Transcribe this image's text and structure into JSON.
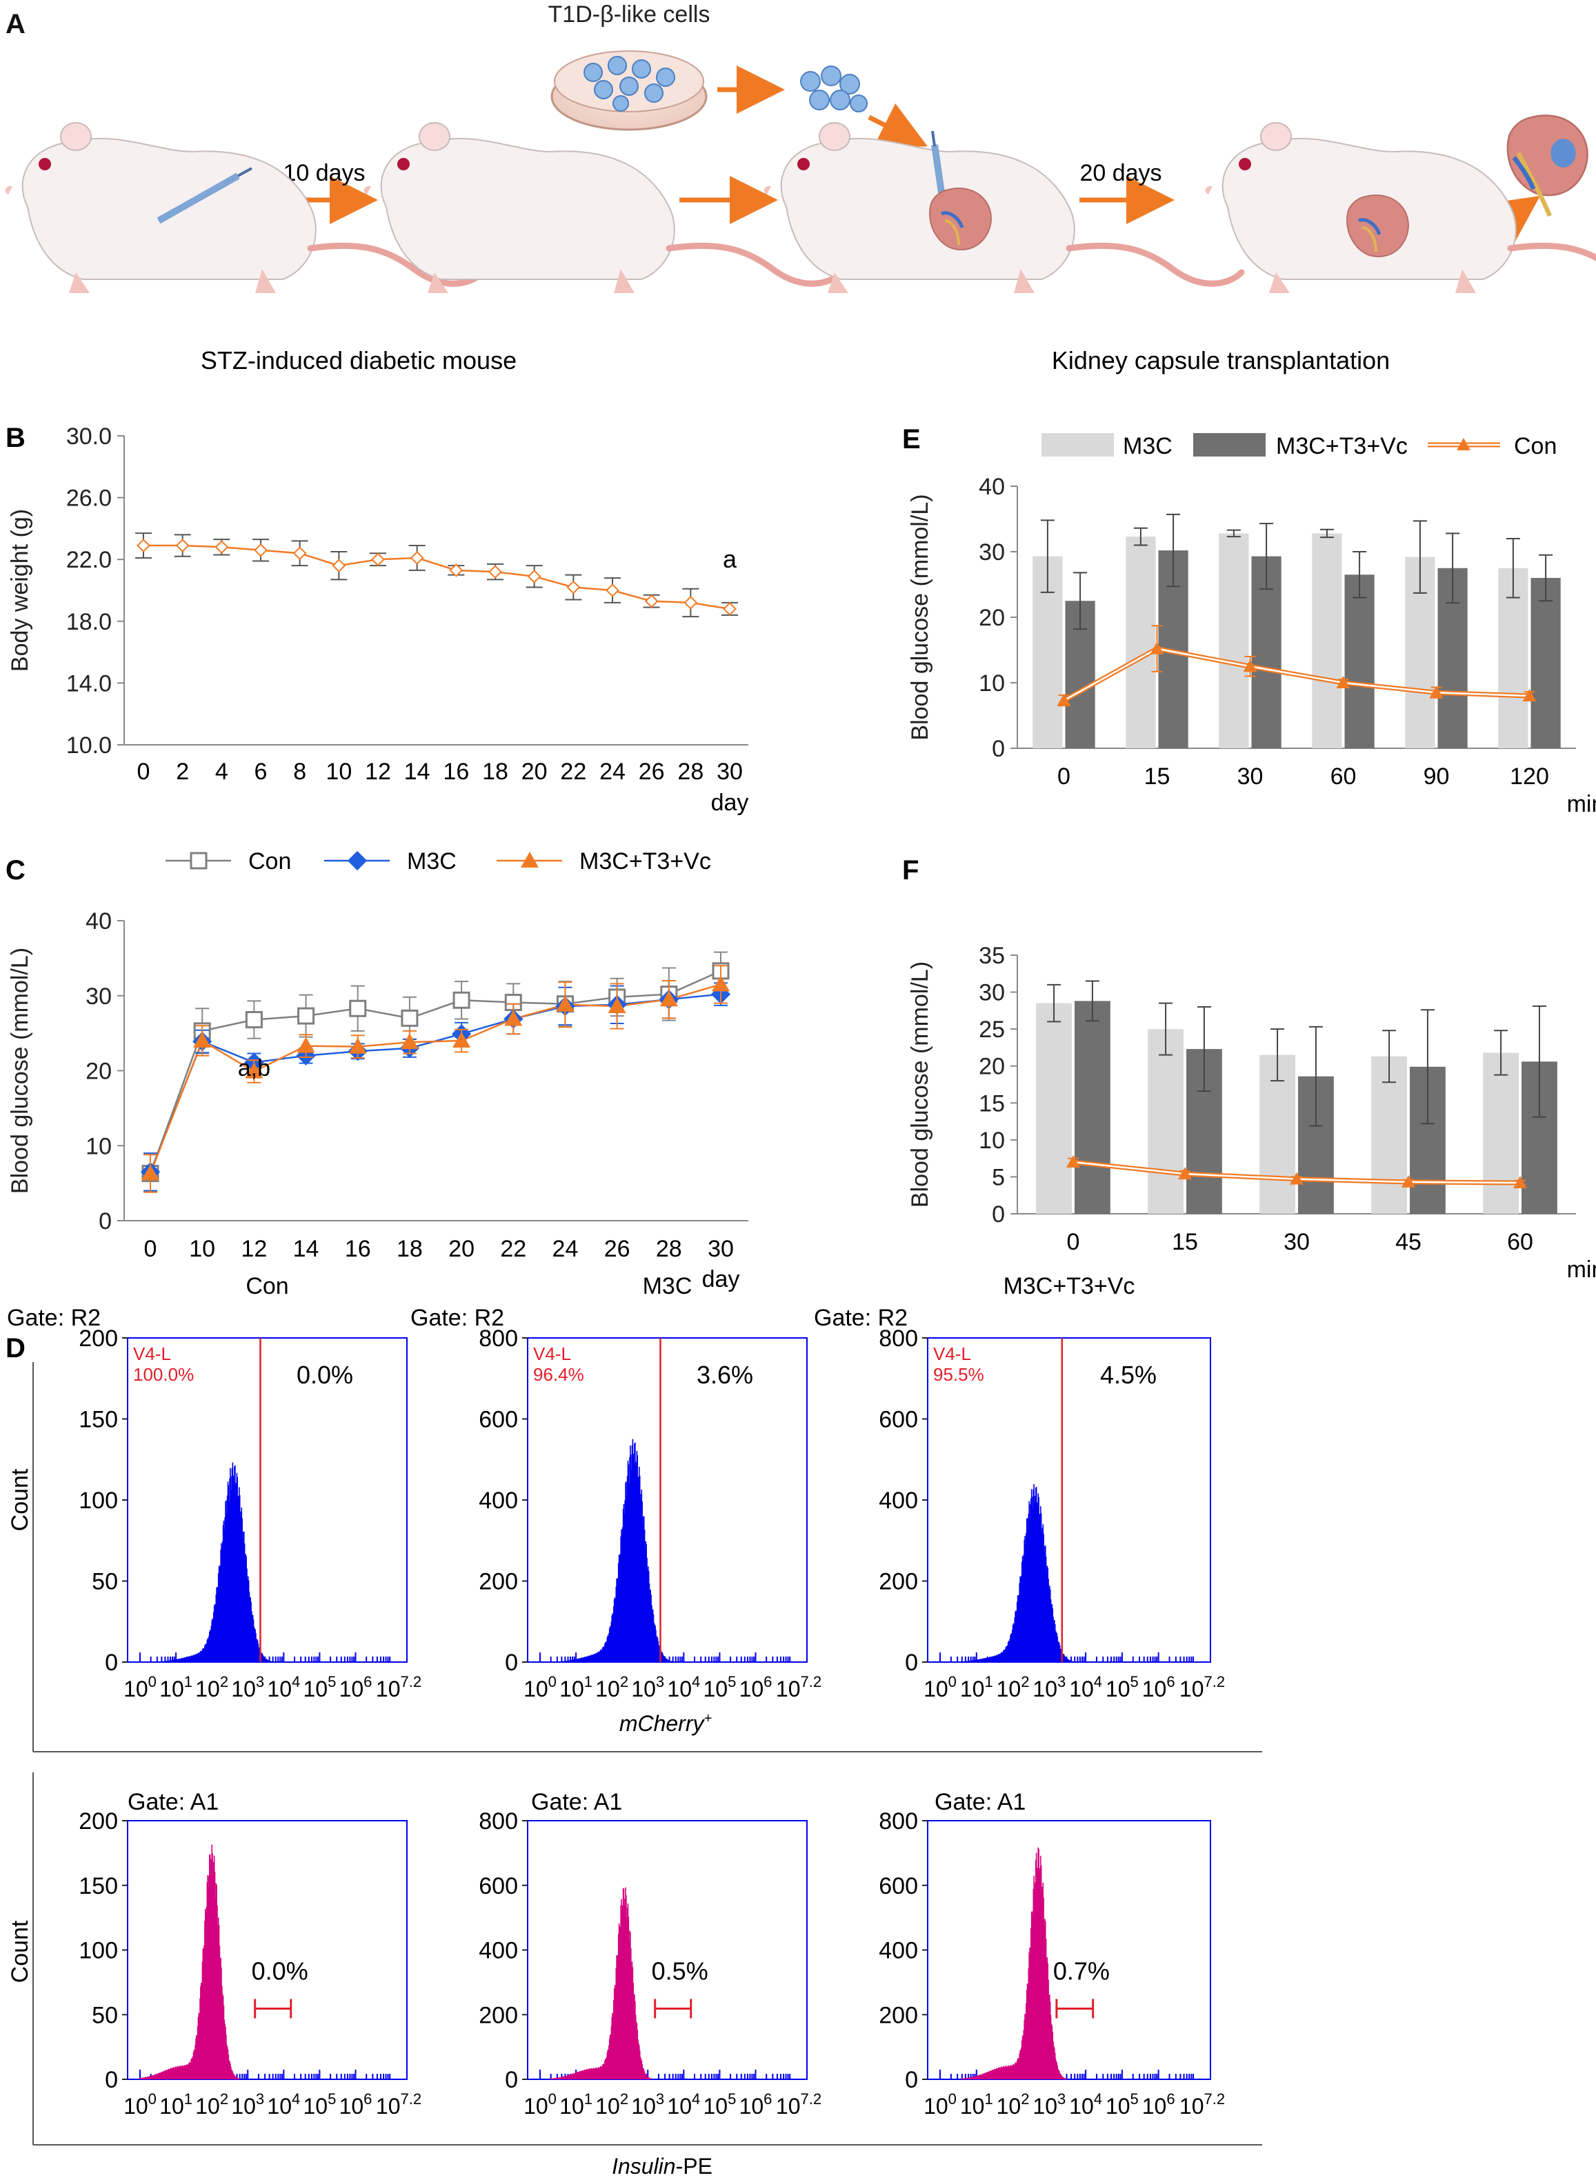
{
  "panels": {
    "A": "A",
    "B": "B",
    "C": "C",
    "D": "D",
    "E": "E",
    "F": "F"
  },
  "schematic": {
    "cells_label": "T1D-β-like cells",
    "step1": "10 days",
    "step2": "20 days",
    "caption_left": "STZ-induced diabetic mouse",
    "caption_right": "Kidney capsule transplantation"
  },
  "colors": {
    "orange": "#F07A24",
    "blue": "#1F5FE0",
    "gray": "#7F7F7F",
    "light_bar": "#D9D9D9",
    "dark_bar": "#707070",
    "flow_blue": "#0000F0",
    "flow_magenta": "#D4007F",
    "gate_red": "#E0202A"
  },
  "chart_data": [
    {
      "id": "B",
      "type": "line",
      "ylabel": "Body weight (g)",
      "xlabel": "day",
      "x": [
        0,
        2,
        4,
        6,
        8,
        10,
        12,
        14,
        16,
        18,
        20,
        22,
        24,
        26,
        28,
        30
      ],
      "ylim": [
        10.0,
        30.0
      ],
      "yticks": [
        "10.0",
        "14.0",
        "18.0",
        "22.0",
        "26.0",
        "30.0"
      ],
      "series": [
        {
          "values": [
            22.9,
            22.9,
            22.8,
            22.6,
            22.4,
            21.6,
            22.0,
            22.1,
            21.3,
            21.2,
            20.9,
            20.2,
            20.0,
            19.3,
            19.2,
            18.8
          ],
          "err": [
            0.8,
            0.7,
            0.5,
            0.7,
            0.8,
            0.9,
            0.4,
            0.8,
            0.3,
            0.5,
            0.7,
            0.8,
            0.8,
            0.4,
            0.9,
            0.4
          ]
        }
      ],
      "annotation": "a"
    },
    {
      "id": "C",
      "type": "line",
      "ylabel": "Blood glucose (mmol/L)",
      "xlabel": "day",
      "x": [
        0,
        10,
        12,
        14,
        16,
        18,
        20,
        22,
        24,
        26,
        28,
        30
      ],
      "ylim": [
        0,
        40
      ],
      "yticks": [
        "0",
        "10",
        "20",
        "30",
        "40"
      ],
      "series": [
        {
          "name": "Con",
          "values": [
            6.3,
            25.3,
            26.8,
            27.3,
            28.3,
            27.0,
            29.4,
            29.1,
            28.9,
            29.8,
            30.2,
            33.3
          ],
          "err": [
            2.5,
            3.0,
            2.5,
            2.8,
            3.0,
            2.8,
            2.5,
            2.5,
            3.0,
            2.5,
            3.5,
            2.5
          ]
        },
        {
          "name": "M3C",
          "values": [
            6.5,
            23.9,
            21.1,
            22.0,
            22.6,
            23.0,
            24.9,
            26.9,
            28.6,
            28.8,
            29.5,
            30.2
          ],
          "err": [
            2.5,
            1.5,
            1.2,
            1.0,
            1.0,
            1.2,
            1.5,
            2.0,
            2.5,
            2.5,
            2.5,
            1.5
          ]
        },
        {
          "name": "M3C+T3+Vc",
          "values": [
            6.3,
            24.0,
            19.9,
            23.3,
            23.2,
            23.8,
            24.0,
            26.9,
            28.8,
            28.6,
            29.5,
            31.5
          ],
          "err": [
            2.5,
            2.0,
            1.5,
            1.5,
            1.5,
            1.5,
            1.5,
            2.0,
            3.0,
            3.0,
            2.5,
            2.5
          ]
        }
      ],
      "annotation": "a,b"
    },
    {
      "id": "E",
      "type": "bar",
      "ylabel": "Blood glucose (mmol/L)",
      "xlabel": "min",
      "categories": [
        "0",
        "15",
        "30",
        "60",
        "90",
        "120"
      ],
      "ylim": [
        0,
        40
      ],
      "yticks": [
        "0",
        "10",
        "20",
        "30",
        "40"
      ],
      "series": [
        {
          "name": "M3C",
          "values": [
            29.3,
            32.3,
            32.8,
            32.8,
            29.2,
            27.5
          ],
          "err": [
            5.5,
            1.3,
            0.5,
            0.6,
            5.5,
            4.5
          ]
        },
        {
          "name": "M3C+T3+Vc",
          "values": [
            22.5,
            30.2,
            29.3,
            26.5,
            27.5,
            26.0
          ],
          "err": [
            4.3,
            5.5,
            5.0,
            3.5,
            5.3,
            3.5
          ]
        },
        {
          "name": "Con",
          "values": [
            7.3,
            15.2,
            12.5,
            10.0,
            8.5,
            8.0
          ],
          "err": [
            0.8,
            3.5,
            1.5,
            0.5,
            0.8,
            0.6
          ]
        }
      ]
    },
    {
      "id": "F",
      "type": "bar",
      "ylabel": "Blood glucose (mmol/L)",
      "xlabel": "min",
      "categories": [
        "0",
        "15",
        "30",
        "45",
        "60"
      ],
      "ylim": [
        0,
        35
      ],
      "yticks": [
        "0",
        "5",
        "10",
        "15",
        "20",
        "25",
        "30",
        "35"
      ],
      "series": [
        {
          "name": "M3C",
          "values": [
            28.5,
            25.0,
            21.5,
            21.3,
            21.8
          ],
          "err": [
            2.5,
            3.5,
            3.5,
            3.5,
            3.0
          ]
        },
        {
          "name": "M3C+T3+Vc",
          "values": [
            28.8,
            22.3,
            18.6,
            19.9,
            20.6
          ],
          "err": [
            2.7,
            5.7,
            6.7,
            7.7,
            7.5
          ]
        },
        {
          "name": "Con",
          "values": [
            7.0,
            5.4,
            4.7,
            4.3,
            4.2
          ],
          "err": [
            0.5,
            0.4,
            0.3,
            0.3,
            0.3
          ]
        }
      ]
    }
  ],
  "flow": {
    "xtick_labels": [
      "10",
      "10",
      "10",
      "10",
      "10",
      "10",
      "10"
    ],
    "xtick_exps": [
      "0",
      "1",
      "2",
      "3",
      "4",
      "5",
      "6",
      "7.2"
    ],
    "ylabel": "Count",
    "row1_xlabel": "mCherry",
    "row1_xlabel_sup": "+",
    "row2_xlabel_italic": "Insulin",
    "row2_xlabel_rest": "-PE",
    "row1": [
      {
        "title": "Con",
        "gate": "Gate: R2",
        "region": "V4-L",
        "region_pct": "100.0%",
        "pct": "0.0%",
        "yticks": [
          "0",
          "50",
          "100",
          "150",
          "200"
        ],
        "ymax": 200,
        "peak": 122
      },
      {
        "title": "M3C",
        "gate": "Gate: R2",
        "region": "V4-L",
        "region_pct": "96.4%",
        "pct": "3.6%",
        "yticks": [
          "0",
          "200",
          "400",
          "600",
          "800"
        ],
        "ymax": 800,
        "peak": 545
      },
      {
        "title": "M3C+T3+Vc",
        "gate": "Gate: R2",
        "region": "V4-L",
        "region_pct": "95.5%",
        "pct": "4.5%",
        "yticks": [
          "0",
          "200",
          "400",
          "600",
          "800"
        ],
        "ymax": 800,
        "peak": 435
      }
    ],
    "row2": [
      {
        "gate": "Gate: A1",
        "pct": "0.0%",
        "yticks": [
          "0",
          "50",
          "100",
          "150",
          "200"
        ],
        "ymax": 200,
        "peak": 178
      },
      {
        "gate": "Gate: A1",
        "pct": "0.5%",
        "yticks": [
          "0",
          "200",
          "400",
          "600",
          "800"
        ],
        "ymax": 800,
        "peak": 590
      },
      {
        "gate": "Gate: A1",
        "pct": "0.7%",
        "yticks": [
          "0",
          "200",
          "400",
          "600",
          "800"
        ],
        "ymax": 800,
        "peak": 710
      }
    ]
  }
}
